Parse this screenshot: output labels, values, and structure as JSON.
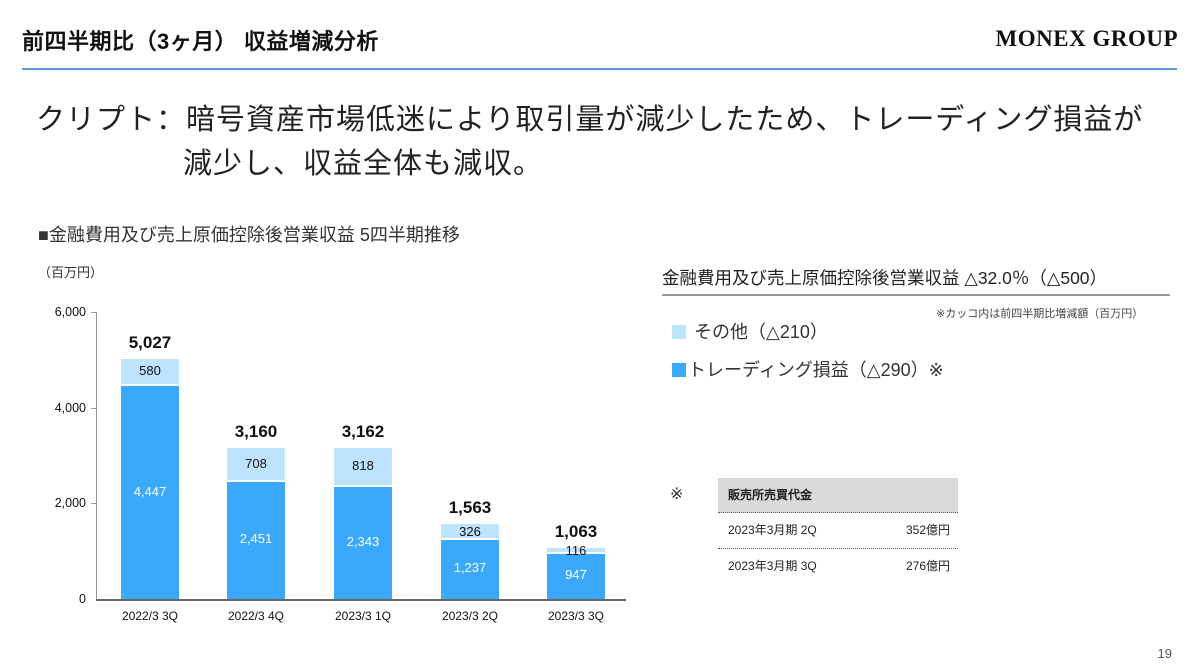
{
  "header": {
    "title": "前四半期比（3ヶ月） 収益増減分析",
    "logo": "MONEX GROUP"
  },
  "lead": {
    "line1": "クリプト：暗号資産市場低迷により取引量が減少したため、トレーディング損益が",
    "line2": "減少し、収益全体も減収。"
  },
  "chart_section": {
    "title": "■金融費用及び売上原価控除後営業収益  5四半期推移",
    "unit": "（百万円）"
  },
  "chart_data": {
    "type": "bar",
    "stacked": true,
    "title": "金融費用及び売上原価控除後営業収益 5四半期推移",
    "xlabel": "",
    "ylabel": "（百万円）",
    "ylim": [
      0,
      6000
    ],
    "yticks": [
      "0",
      "2,000",
      "4,000",
      "6,000"
    ],
    "grid": false,
    "categories": [
      "2022/3 3Q",
      "2022/3 4Q",
      "2023/3 1Q",
      "2023/3 2Q",
      "2023/3 3Q"
    ],
    "series": [
      {
        "name": "トレーディング損益",
        "color": "#3aa8fb",
        "values": [
          4447,
          2451,
          2343,
          1237,
          947
        ],
        "labels": [
          "4,447",
          "2,451",
          "2,343",
          "1,237",
          "947"
        ]
      },
      {
        "name": "その他",
        "color": "#bde3fe",
        "values": [
          580,
          708,
          818,
          326,
          116
        ],
        "labels": [
          "580",
          "708",
          "818",
          "326",
          "116"
        ]
      }
    ],
    "totals": [
      5027,
      3160,
      3162,
      1563,
      1063
    ],
    "total_labels": [
      "5,027",
      "3,160",
      "3,162",
      "1,563",
      "1,063"
    ]
  },
  "summary": {
    "title": "金融費用及び売上原価控除後営業収益 △32.0％（△500）",
    "note": "※カッコ内は前四半期比増減額（百万円）",
    "legend": [
      {
        "label": "その他（△210）",
        "color": "#bde3fe"
      },
      {
        "label": "トレーディング損益（△290）※",
        "color": "#3aa8fb"
      }
    ]
  },
  "reference_table": {
    "mark": "※",
    "header": "販売所売買代金",
    "rows": [
      {
        "period": "2023年3月期 2Q",
        "value": "352億円"
      },
      {
        "period": "2023年3月期 3Q",
        "value": "276億円"
      }
    ]
  },
  "page_number": "19"
}
